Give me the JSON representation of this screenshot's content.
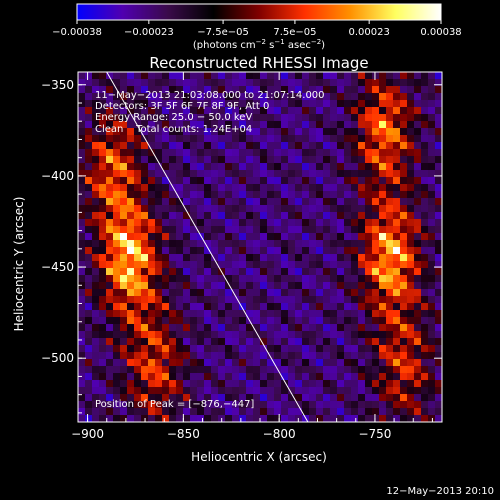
{
  "chart_data": {
    "type": "heatmap",
    "title": "Reconstructed RHESSI Image",
    "xlabel": "Heliocentric X (arcsec)",
    "ylabel": "Heliocentric Y (arcsec)",
    "xlim": [
      -905,
      -715
    ],
    "ylim": [
      -535,
      -343
    ],
    "x_ticks": [
      -900,
      -850,
      -800,
      -750
    ],
    "x_tick_labels": [
      "−900",
      "−850",
      "−800",
      "−750"
    ],
    "y_ticks": [
      -350,
      -400,
      -450,
      -500
    ],
    "y_tick_labels": [
      "−350",
      "−400",
      "−450",
      "−500"
    ],
    "colorbar": {
      "range": [
        -0.00038,
        0.00038
      ],
      "ticks": [
        -0.00038,
        -0.00023,
        -7.5e-05,
        7.5e-05,
        0.00023,
        0.00038
      ],
      "tick_labels": [
        "−0.00038",
        "−0.00023",
        "−7.5e−05",
        "7.5e−05",
        "0.00023",
        "0.00038"
      ],
      "unit_main": "(photons cm",
      "unit_exp1": "−2",
      "unit_mid": " s",
      "unit_exp2": "−1",
      "unit_end": " asec",
      "unit_exp3": "−2",
      "unit_close": ")",
      "colors": [
        "#0000ff",
        "#5000b0",
        "#3a0a4a",
        "#000000",
        "#800000",
        "#ff3000",
        "#ff9000",
        "#ffff60",
        "#ffffff"
      ]
    },
    "annotations": {
      "line1": "11−May−2013 21:03:08.000 to 21:07:14.000",
      "line2": "Detectors: 3F 5F 6F 7F 8F 9F, Att 0",
      "line3": "Energy Range: 25.0 − 50.0 keV",
      "line4": "Clean    Total counts: 1.24E+04",
      "peak": "Position of Peak = [−876,−447]"
    },
    "limb_line": {
      "x": [
        -890,
        -785
      ],
      "y": [
        -343,
        -535
      ]
    },
    "sources": [
      {
        "x": -878,
        "y": -447,
        "intensity": 1.0
      },
      {
        "x": -887,
        "y": -395,
        "intensity": 0.7
      },
      {
        "x": -865,
        "y": -505,
        "intensity": 0.65
      },
      {
        "x": -742,
        "y": -445,
        "intensity": 0.95
      },
      {
        "x": -745,
        "y": -375,
        "intensity": 0.8
      },
      {
        "x": -735,
        "y": -505,
        "intensity": 0.6
      }
    ],
    "timestamp": "12−May−2013 20:10"
  }
}
